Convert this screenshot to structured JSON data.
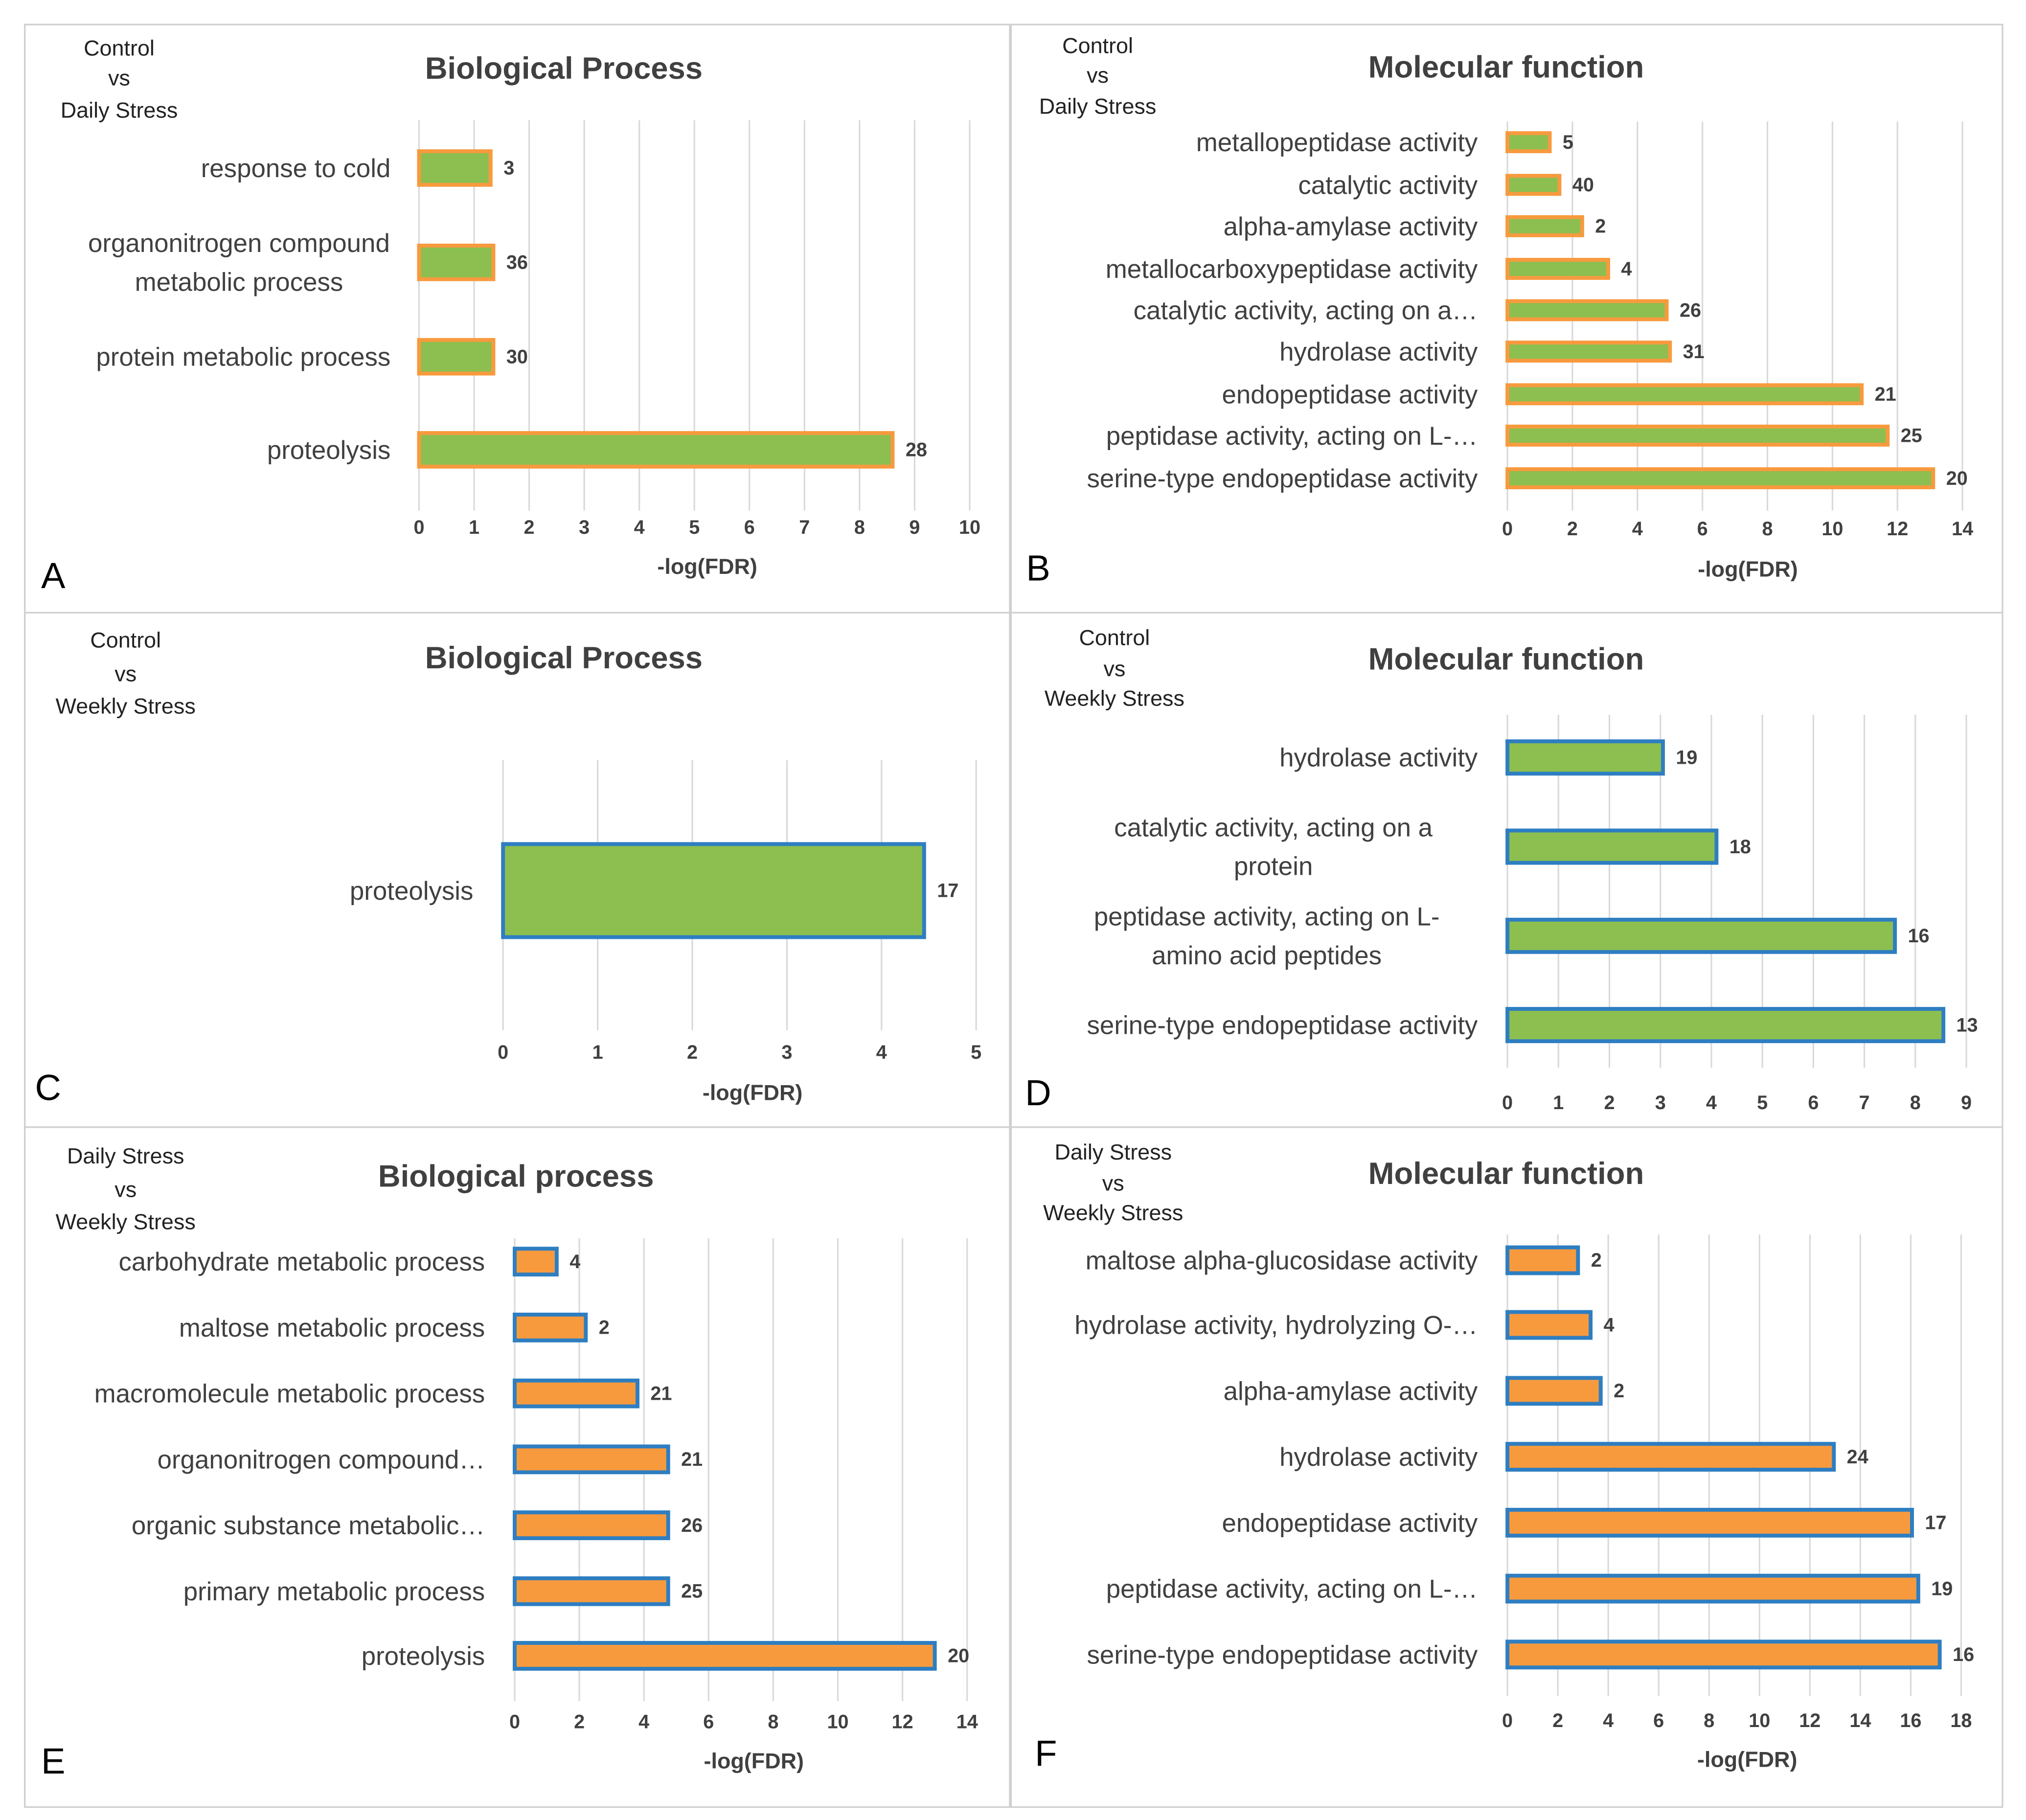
{
  "colors": {
    "green": "#8CBF50",
    "orange": "#F79A3E",
    "blue": "#2E7EC1",
    "grid": "#D9D9D9",
    "text": "#404040",
    "panel_border": "#D0D0D0"
  },
  "chart_data": [
    {
      "id": "A",
      "type": "bar",
      "orientation": "horizontal",
      "panel_label": "A",
      "comparison": [
        "Control",
        "vs",
        "Daily Stress"
      ],
      "title": "Biological Process",
      "xlabel": "-log(FDR)",
      "xlim": [
        0,
        10
      ],
      "xticks": [
        0,
        1,
        2,
        3,
        4,
        5,
        6,
        7,
        8,
        9,
        10
      ],
      "bar_fill": "green",
      "bar_edge": "orange",
      "categories": [
        [
          "response to cold"
        ],
        [
          "organonitrogen compound",
          "metabolic process"
        ],
        [
          "protein metabolic process"
        ],
        [
          "proteolysis"
        ]
      ],
      "values": [
        1.3,
        1.35,
        1.35,
        8.6
      ],
      "data_labels": [
        "3",
        "36",
        "30",
        "28"
      ]
    },
    {
      "id": "B",
      "type": "bar",
      "orientation": "horizontal",
      "panel_label": "B",
      "comparison": [
        "Control",
        "vs",
        "Daily Stress"
      ],
      "title": "Molecular function",
      "xlabel": "-log(FDR)",
      "xlim": [
        0,
        14
      ],
      "xticks": [
        0,
        2,
        4,
        6,
        8,
        10,
        12,
        14
      ],
      "bar_fill": "green",
      "bar_edge": "orange",
      "categories": [
        [
          "metallopeptidase activity"
        ],
        [
          "catalytic activity"
        ],
        [
          "alpha-amylase activity"
        ],
        [
          "metallocarboxypeptidase activity"
        ],
        [
          "catalytic activity, acting on a…"
        ],
        [
          "hydrolase activity"
        ],
        [
          "endopeptidase activity"
        ],
        [
          "peptidase activity, acting on L-…"
        ],
        [
          "serine-type endopeptidase activity"
        ]
      ],
      "values": [
        1.3,
        1.6,
        2.3,
        3.1,
        4.9,
        5.0,
        10.9,
        11.7,
        13.1
      ],
      "data_labels": [
        "5",
        "40",
        "2",
        "4",
        "26",
        "31",
        "21",
        "25",
        "20"
      ]
    },
    {
      "id": "C",
      "type": "bar",
      "orientation": "horizontal",
      "panel_label": "C",
      "comparison": [
        "Control",
        "vs",
        "Weekly Stress"
      ],
      "title": "Biological Process",
      "xlabel": "-log(FDR)",
      "xlim": [
        0,
        5
      ],
      "xticks": [
        0,
        1,
        2,
        3,
        4,
        5
      ],
      "bar_fill": "green",
      "bar_edge": "blue",
      "categories": [
        [
          "proteolysis"
        ]
      ],
      "values": [
        4.45
      ],
      "data_labels": [
        "17"
      ]
    },
    {
      "id": "D",
      "type": "bar",
      "orientation": "horizontal",
      "panel_label": "D",
      "comparison": [
        "Control",
        "vs",
        "Weekly Stress"
      ],
      "title": "Molecular function",
      "xlabel": "",
      "xlim": [
        0,
        9
      ],
      "xticks": [
        0,
        1,
        2,
        3,
        4,
        5,
        6,
        7,
        8,
        9
      ],
      "bar_fill": "green",
      "bar_edge": "blue",
      "categories": [
        [
          "hydrolase activity"
        ],
        [
          "catalytic activity, acting on a",
          "protein"
        ],
        [
          "peptidase activity, acting on L-",
          "amino acid peptides"
        ],
        [
          "serine-type endopeptidase activity"
        ]
      ],
      "values": [
        3.05,
        4.1,
        7.6,
        8.55
      ],
      "data_labels": [
        "19",
        "18",
        "16",
        "13"
      ]
    },
    {
      "id": "E",
      "type": "bar",
      "orientation": "horizontal",
      "panel_label": "E",
      "comparison": [
        "Daily Stress",
        "vs",
        "Weekly Stress"
      ],
      "title": "Biological process",
      "xlabel": "-log(FDR)",
      "xlim": [
        0,
        14
      ],
      "xticks": [
        0,
        2,
        4,
        6,
        8,
        10,
        12,
        14
      ],
      "bar_fill": "orange",
      "bar_edge": "blue",
      "categories": [
        [
          "carbohydrate metabolic process"
        ],
        [
          "maltose metabolic process"
        ],
        [
          "macromolecule metabolic process"
        ],
        [
          "organonitrogen compound…"
        ],
        [
          "organic substance metabolic…"
        ],
        [
          "primary metabolic process"
        ],
        [
          "proteolysis"
        ]
      ],
      "values": [
        1.3,
        2.2,
        3.8,
        4.75,
        4.75,
        4.75,
        13.0
      ],
      "data_labels": [
        "4",
        "2",
        "21",
        "21",
        "26",
        "25",
        "20"
      ]
    },
    {
      "id": "F",
      "type": "bar",
      "orientation": "horizontal",
      "panel_label": "F",
      "comparison": [
        "Daily Stress",
        "vs",
        "Weekly Stress"
      ],
      "title": "Molecular function",
      "xlabel": "-log(FDR)",
      "xlim": [
        0,
        18
      ],
      "xticks": [
        0,
        2,
        4,
        6,
        8,
        10,
        12,
        14,
        16,
        18
      ],
      "bar_fill": "orange",
      "bar_edge": "blue",
      "categories": [
        [
          "maltose alpha-glucosidase activity"
        ],
        [
          "hydrolase activity, hydrolyzing O-…"
        ],
        [
          "alpha-amylase activity"
        ],
        [
          "hydrolase activity"
        ],
        [
          "endopeptidase activity"
        ],
        [
          "peptidase activity, acting on L-…"
        ],
        [
          "serine-type endopeptidase activity"
        ]
      ],
      "values": [
        2.8,
        3.3,
        3.7,
        12.95,
        16.05,
        16.3,
        17.15
      ],
      "data_labels": [
        "2",
        "4",
        "2",
        "24",
        "17",
        "19",
        "16"
      ]
    }
  ]
}
